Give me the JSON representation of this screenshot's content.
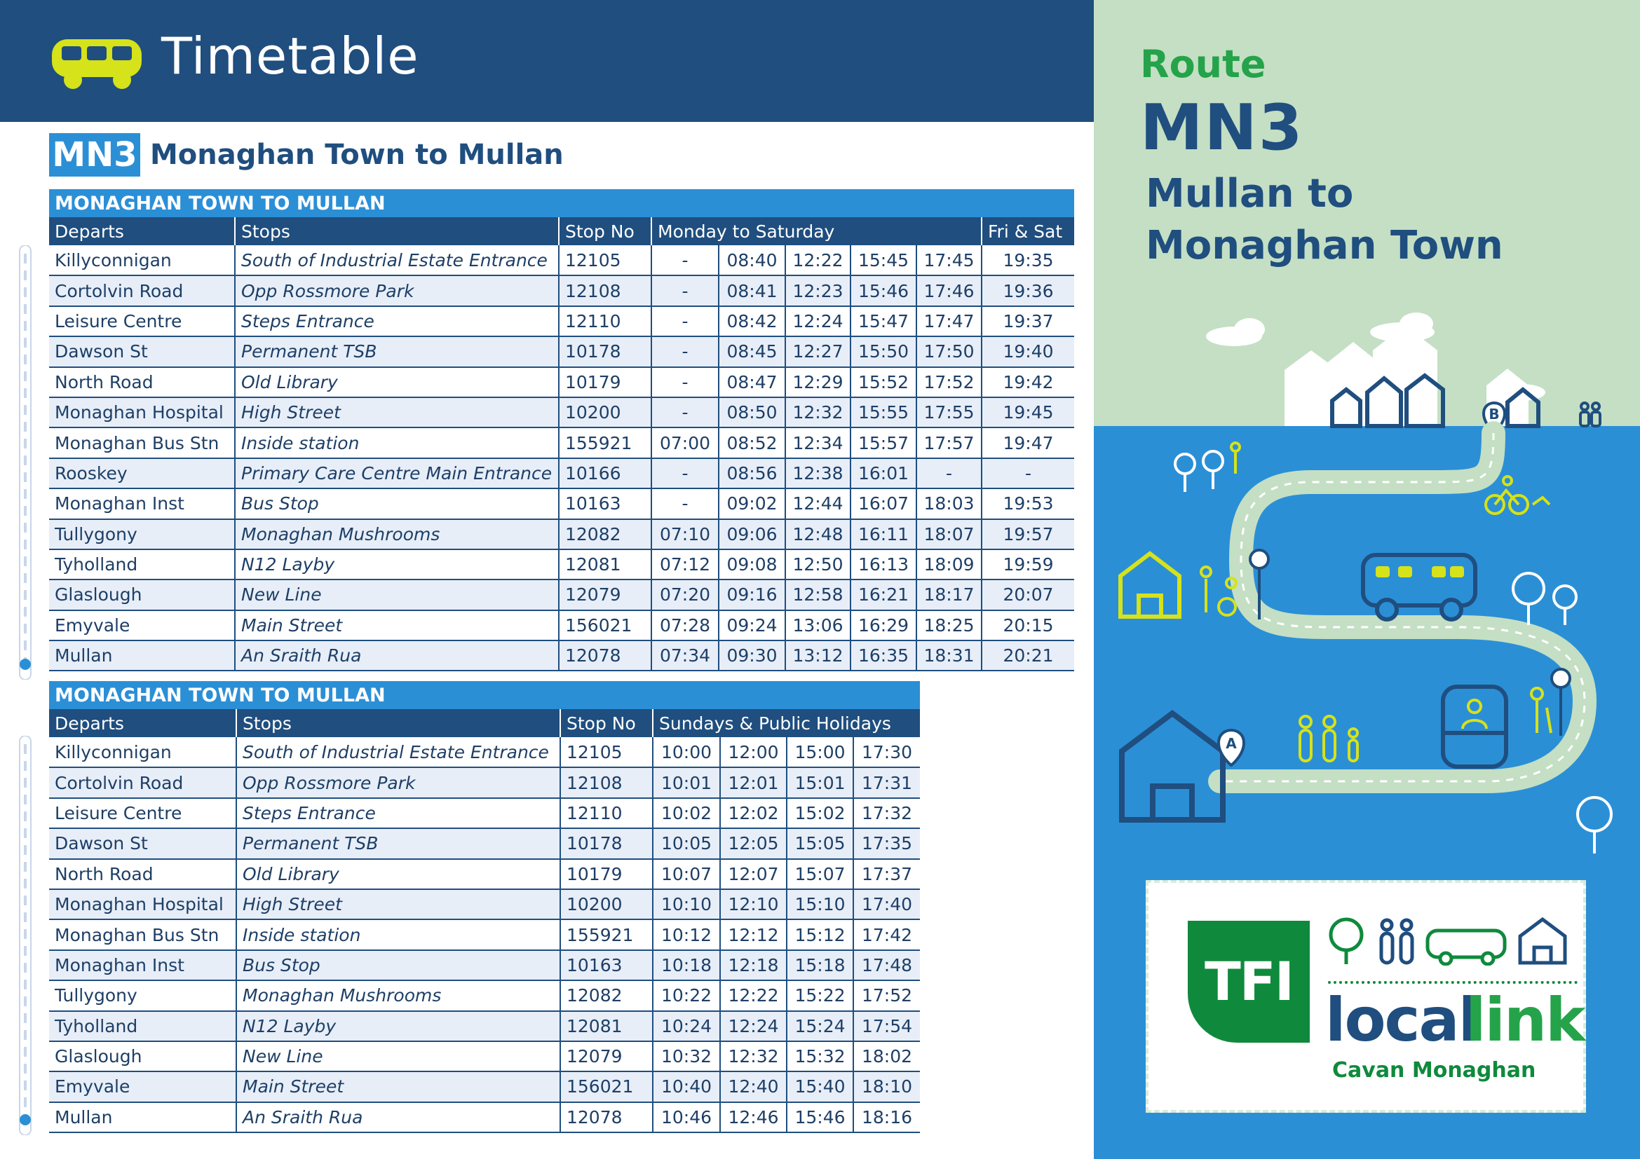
{
  "header": {
    "title": "Timetable",
    "icon": "bus-icon"
  },
  "route": {
    "code": "MN3",
    "heading": "Monaghan Town to Mullan"
  },
  "table1": {
    "banner": "MONAGHAN TOWN TO MULLAN",
    "columns": {
      "departs": "Departs",
      "stops": "Stops",
      "stop_no": "Stop No",
      "days": "Monday to Saturday",
      "extra": "Fri & Sat"
    },
    "rows": [
      {
        "departs": "Killyconnigan",
        "stop": "South of Industrial Estate Entrance",
        "stop_no": "12105",
        "times": [
          "-",
          "08:40",
          "12:22",
          "15:45",
          "17:45",
          "19:35"
        ]
      },
      {
        "departs": "Cortolvin Road",
        "stop": "Opp Rossmore Park",
        "stop_no": "12108",
        "times": [
          "-",
          "08:41",
          "12:23",
          "15:46",
          "17:46",
          "19:36"
        ]
      },
      {
        "departs": "Leisure Centre",
        "stop": "Steps Entrance",
        "stop_no": "12110",
        "times": [
          "-",
          "08:42",
          "12:24",
          "15:47",
          "17:47",
          "19:37"
        ]
      },
      {
        "departs": "Dawson St",
        "stop": "Permanent TSB",
        "stop_no": "10178",
        "times": [
          "-",
          "08:45",
          "12:27",
          "15:50",
          "17:50",
          "19:40"
        ]
      },
      {
        "departs": "North Road",
        "stop": "Old Library",
        "stop_no": "10179",
        "times": [
          "-",
          "08:47",
          "12:29",
          "15:52",
          "17:52",
          "19:42"
        ]
      },
      {
        "departs": "Monaghan Hospital",
        "stop": "High Street",
        "stop_no": "10200",
        "times": [
          "-",
          "08:50",
          "12:32",
          "15:55",
          "17:55",
          "19:45"
        ]
      },
      {
        "departs": "Monaghan Bus Stn",
        "stop": "Inside station",
        "stop_no": "155921",
        "times": [
          "07:00",
          "08:52",
          "12:34",
          "15:57",
          "17:57",
          "19:47"
        ]
      },
      {
        "departs": "Rooskey",
        "stop": "Primary Care Centre Main Entrance",
        "stop_no": "10166",
        "times": [
          "-",
          "08:56",
          "12:38",
          "16:01",
          "-",
          "-"
        ]
      },
      {
        "departs": "Monaghan Inst",
        "stop": "Bus Stop",
        "stop_no": "10163",
        "times": [
          "-",
          "09:02",
          "12:44",
          "16:07",
          "18:03",
          "19:53"
        ]
      },
      {
        "departs": "Tullygony",
        "stop": "Monaghan Mushrooms",
        "stop_no": "12082",
        "times": [
          "07:10",
          "09:06",
          "12:48",
          "16:11",
          "18:07",
          "19:57"
        ]
      },
      {
        "departs": "Tyholland",
        "stop": "N12 Layby",
        "stop_no": "12081",
        "times": [
          "07:12",
          "09:08",
          "12:50",
          "16:13",
          "18:09",
          "19:59"
        ]
      },
      {
        "departs": "Glaslough",
        "stop": "New Line",
        "stop_no": "12079",
        "times": [
          "07:20",
          "09:16",
          "12:58",
          "16:21",
          "18:17",
          "20:07"
        ]
      },
      {
        "departs": "Emyvale",
        "stop": "Main Street",
        "stop_no": "156021",
        "times": [
          "07:28",
          "09:24",
          "13:06",
          "16:29",
          "18:25",
          "20:15"
        ]
      },
      {
        "departs": "Mullan",
        "stop": "An Sraith Rua",
        "stop_no": "12078",
        "times": [
          "07:34",
          "09:30",
          "13:12",
          "16:35",
          "18:31",
          "20:21"
        ]
      }
    ]
  },
  "table2": {
    "banner": "MONAGHAN TOWN TO MULLAN",
    "columns": {
      "departs": "Departs",
      "stops": "Stops",
      "stop_no": "Stop No",
      "days": "Sundays & Public Holidays"
    },
    "rows": [
      {
        "departs": "Killyconnigan",
        "stop": "South of Industrial Estate Entrance",
        "stop_no": "12105",
        "times": [
          "10:00",
          "12:00",
          "15:00",
          "17:30"
        ]
      },
      {
        "departs": "Cortolvin Road",
        "stop": "Opp Rossmore Park",
        "stop_no": "12108",
        "times": [
          "10:01",
          "12:01",
          "15:01",
          "17:31"
        ]
      },
      {
        "departs": "Leisure Centre",
        "stop": "Steps Entrance",
        "stop_no": "12110",
        "times": [
          "10:02",
          "12:02",
          "15:02",
          "17:32"
        ]
      },
      {
        "departs": "Dawson St",
        "stop": "Permanent TSB",
        "stop_no": "10178",
        "times": [
          "10:05",
          "12:05",
          "15:05",
          "17:35"
        ]
      },
      {
        "departs": "North Road",
        "stop": "Old Library",
        "stop_no": "10179",
        "times": [
          "10:07",
          "12:07",
          "15:07",
          "17:37"
        ]
      },
      {
        "departs": "Monaghan Hospital",
        "stop": "High Street",
        "stop_no": "10200",
        "times": [
          "10:10",
          "12:10",
          "15:10",
          "17:40"
        ]
      },
      {
        "departs": "Monaghan Bus Stn",
        "stop": "Inside station",
        "stop_no": "155921",
        "times": [
          "10:12",
          "12:12",
          "15:12",
          "17:42"
        ]
      },
      {
        "departs": "Monaghan Inst",
        "stop": "Bus Stop",
        "stop_no": "10163",
        "times": [
          "10:18",
          "12:18",
          "15:18",
          "17:48"
        ]
      },
      {
        "departs": "Tullygony",
        "stop": "Monaghan Mushrooms",
        "stop_no": "12082",
        "times": [
          "10:22",
          "12:22",
          "15:22",
          "17:52"
        ]
      },
      {
        "departs": "Tyholland",
        "stop": "N12 Layby",
        "stop_no": "12081",
        "times": [
          "10:24",
          "12:24",
          "15:24",
          "17:54"
        ]
      },
      {
        "departs": "Glaslough",
        "stop": "New Line",
        "stop_no": "12079",
        "times": [
          "10:32",
          "12:32",
          "15:32",
          "18:02"
        ]
      },
      {
        "departs": "Emyvale",
        "stop": "Main Street",
        "stop_no": "156021",
        "times": [
          "10:40",
          "12:40",
          "15:40",
          "18:10"
        ]
      },
      {
        "departs": "Mullan",
        "stop": "An Sraith Rua",
        "stop_no": "12078",
        "times": [
          "10:46",
          "12:46",
          "15:46",
          "18:16"
        ]
      }
    ]
  },
  "panel": {
    "label": "Route",
    "code": "MN3",
    "dest_line1": "Mullan to",
    "dest_line2": "Monaghan Town",
    "map_markers": {
      "start": "A",
      "end": "B"
    }
  },
  "logo": {
    "badge": "TFI",
    "word1": "local",
    "word2": "link",
    "region": "Cavan Monaghan",
    "icons": [
      "tree-icon",
      "people-icon",
      "bus-icon",
      "house-icon"
    ]
  },
  "colors": {
    "navy": "#1f4e7f",
    "blue": "#2b8fd6",
    "green": "#25a34a",
    "dark_green": "#0f8a3c",
    "mint": "#c4dfc4",
    "row_alt": "#e7eef8",
    "yellow": "#d6e21a"
  }
}
